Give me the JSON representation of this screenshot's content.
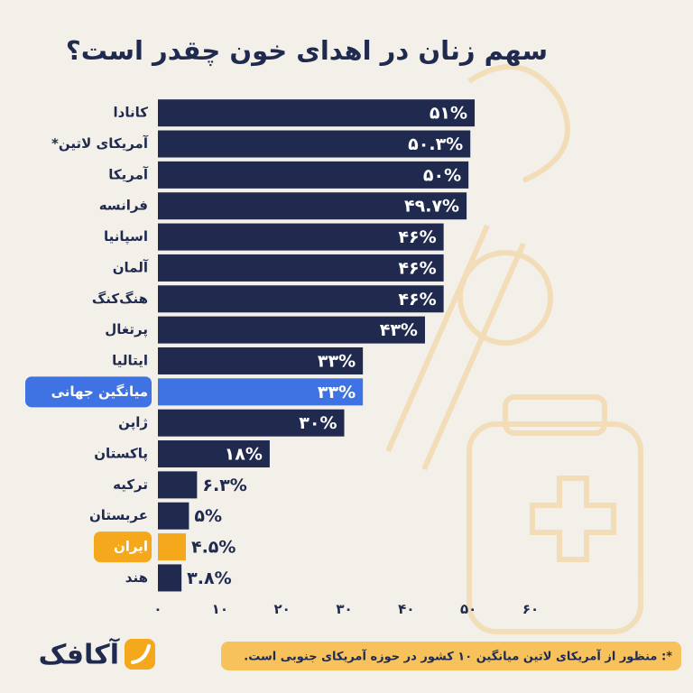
{
  "chart_data": {
    "type": "bar",
    "orientation": "horizontal",
    "title": "سهم زنان در اهدای خون چقدر است؟",
    "categories": [
      "کانادا",
      "آمریکای لاتین*",
      "آمریکا",
      "فرانسه",
      "اسپانیا",
      "آلمان",
      "هنگ‌کنگ",
      "پرتغال",
      "ایتالیا",
      "میانگین جهانی",
      "ژاپن",
      "پاکستان",
      "ترکیه",
      "عربستان",
      "ایران",
      "هند"
    ],
    "values": [
      51,
      50.3,
      50,
      49.7,
      46,
      46,
      46,
      43,
      33,
      33,
      30,
      18,
      6.3,
      5,
      4.5,
      3.8
    ],
    "value_labels": [
      "۵۱%",
      "۵۰.۳%",
      "۵۰%",
      "۴۹.۷%",
      "۴۶%",
      "۴۶%",
      "۴۶%",
      "۴۳%",
      "۳۳%",
      "۳۳%",
      "۳۰%",
      "۱۸%",
      "۶.۳%",
      "۵%",
      "۴.۵%",
      "۳.۸%"
    ],
    "colors": [
      "#1f2a4e",
      "#1f2a4e",
      "#1f2a4e",
      "#1f2a4e",
      "#1f2a4e",
      "#1f2a4e",
      "#1f2a4e",
      "#1f2a4e",
      "#1f2a4e",
      "#3f72e3",
      "#1f2a4e",
      "#1f2a4e",
      "#1f2a4e",
      "#1f2a4e",
      "#f5a81c",
      "#1f2a4e"
    ],
    "xlim": [
      0,
      60
    ],
    "xticks": [
      {
        "value": 0,
        "label": "۰"
      },
      {
        "value": 10,
        "label": "۱۰"
      },
      {
        "value": 20,
        "label": "۲۰"
      },
      {
        "value": 30,
        "label": "۳۰"
      },
      {
        "value": 40,
        "label": "۴۰"
      },
      {
        "value": 50,
        "label": "۵۰"
      },
      {
        "value": 60,
        "label": "۶۰"
      }
    ],
    "grid": false,
    "footnote": "*: منظور از آمریکای لاتین میانگین ۱۰ کشور در حوزه آمریکای جنوبی است.",
    "logo": "آکافک"
  }
}
